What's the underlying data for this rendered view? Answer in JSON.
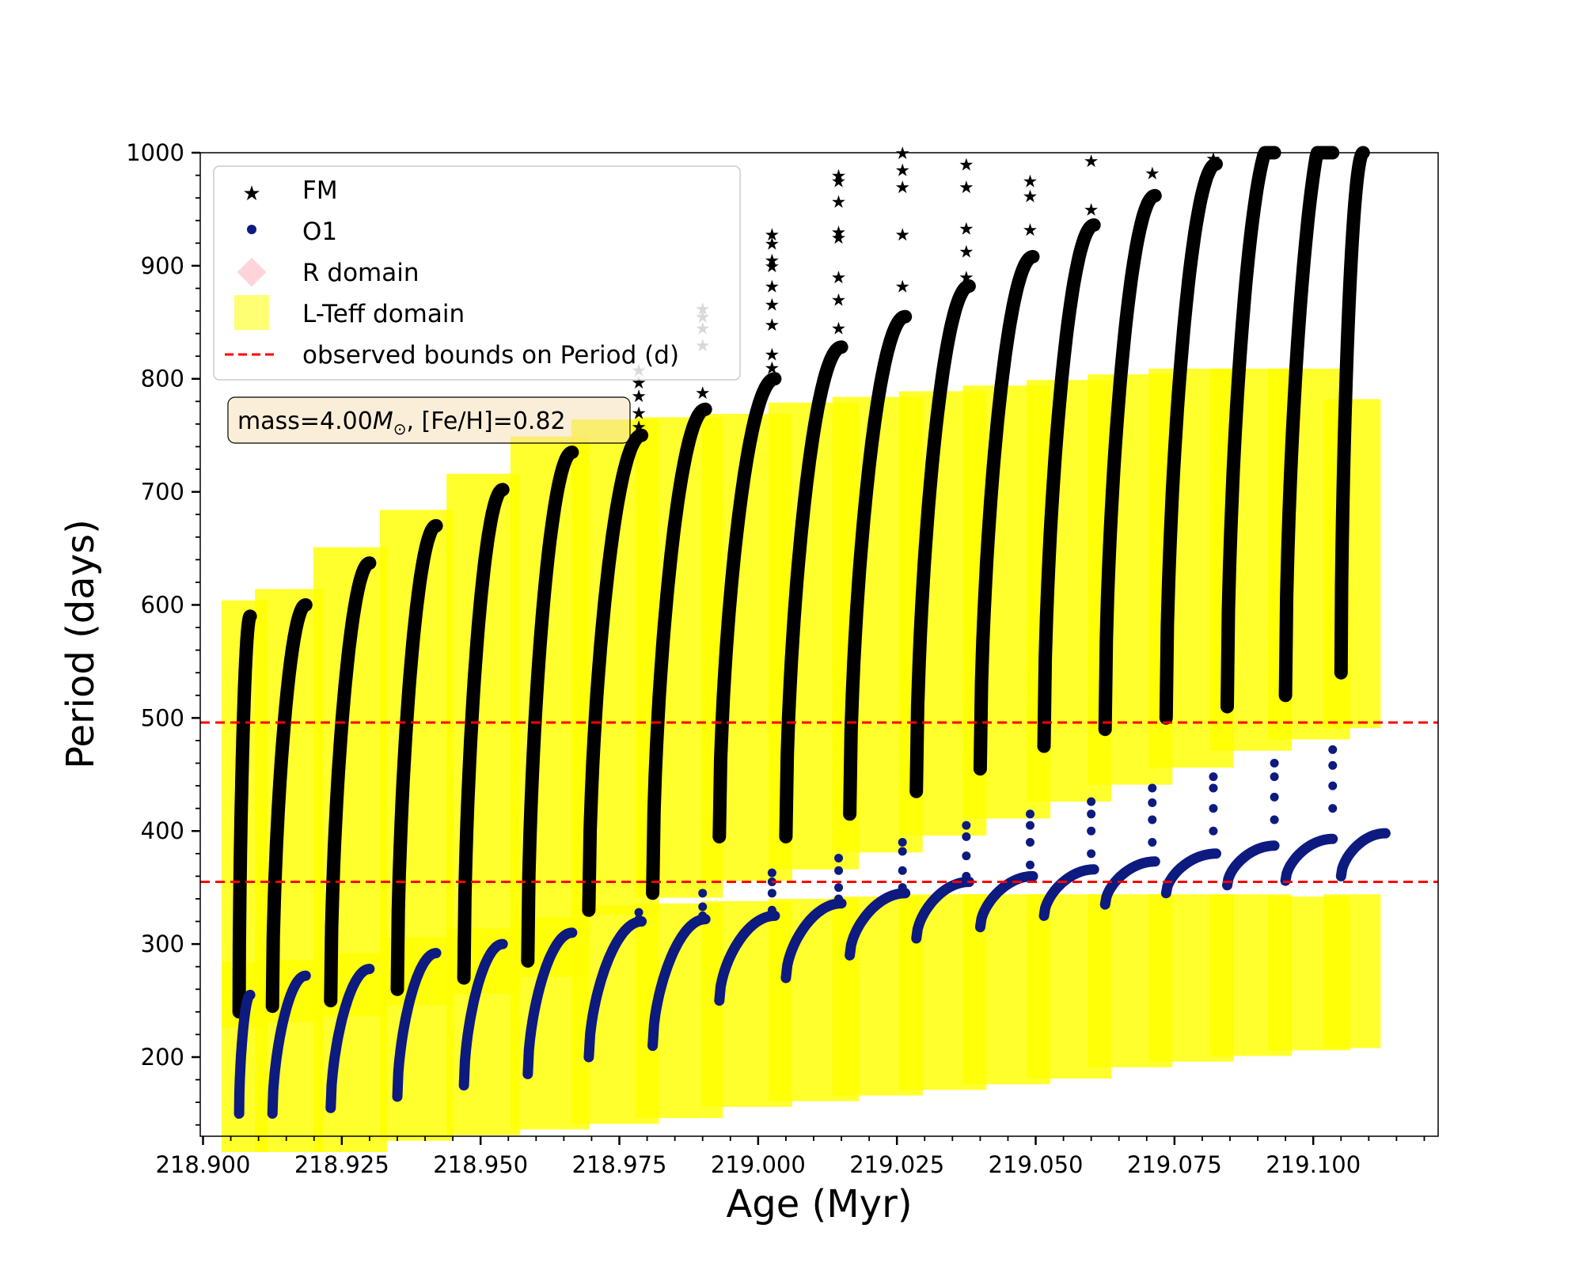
{
  "chart_data": {
    "type": "scatter",
    "xlabel": "Age (Myr)",
    "ylabel": "Period (days)",
    "xlim": [
      218.8995,
      219.1225
    ],
    "ylim": [
      130,
      1000
    ],
    "xticks": [
      218.9,
      218.925,
      218.95,
      218.975,
      219.0,
      219.025,
      219.05,
      219.075,
      219.1
    ],
    "xtick_labels": [
      "218.900",
      "218.925",
      "218.950",
      "218.975",
      "219.000",
      "219.025",
      "219.050",
      "219.075",
      "219.100"
    ],
    "yticks": [
      200,
      300,
      400,
      500,
      600,
      700,
      800,
      900,
      1000
    ],
    "ytick_labels": [
      "200",
      "300",
      "400",
      "500",
      "600",
      "700",
      "800",
      "900",
      "1000"
    ],
    "legend_position": "top-left",
    "annotation": {
      "text_prefix": "mass=4.00",
      "symbol": "M",
      "subscript": "⊙",
      "text_suffix": ", [Fe/H]=0.82"
    },
    "series": [
      {
        "name": "FM",
        "marker": "star",
        "color": "#000000",
        "cycles": [
          {
            "start": 218.9065,
            "end": 218.9085,
            "p0": 240,
            "p1": 590
          },
          {
            "start": 218.9125,
            "end": 218.9185,
            "p0": 245,
            "p1": 600
          },
          {
            "start": 218.923,
            "end": 218.93,
            "p0": 250,
            "p1": 637
          },
          {
            "start": 218.935,
            "end": 218.942,
            "p0": 260,
            "p1": 670
          },
          {
            "start": 218.947,
            "end": 218.954,
            "p0": 270,
            "p1": 702
          },
          {
            "start": 218.9585,
            "end": 218.9665,
            "p0": 285,
            "p1": 735
          },
          {
            "start": 218.9695,
            "end": 218.979,
            "p0": 330,
            "p1": 750
          },
          {
            "start": 218.981,
            "end": 218.9905,
            "p0": 345,
            "p1": 773
          },
          {
            "start": 218.993,
            "end": 219.003,
            "p0": 395,
            "p1": 800
          },
          {
            "start": 219.005,
            "end": 219.015,
            "p0": 395,
            "p1": 828
          },
          {
            "start": 219.0165,
            "end": 219.0265,
            "p0": 415,
            "p1": 855
          },
          {
            "start": 219.0285,
            "end": 219.038,
            "p0": 435,
            "p1": 882
          },
          {
            "start": 219.04,
            "end": 219.0495,
            "p0": 455,
            "p1": 908
          },
          {
            "start": 219.0515,
            "end": 219.0605,
            "p0": 475,
            "p1": 936
          },
          {
            "start": 219.0625,
            "end": 219.0715,
            "p0": 490,
            "p1": 962
          },
          {
            "start": 219.0735,
            "end": 219.0825,
            "p0": 500,
            "p1": 990
          },
          {
            "start": 219.0845,
            "end": 219.093,
            "p0": 510,
            "p1": 1015
          },
          {
            "start": 219.095,
            "end": 219.1035,
            "p0": 520,
            "p1": 1040
          },
          {
            "start": 219.105,
            "end": 219.109,
            "p0": 540,
            "p1": 1000
          }
        ],
        "spikes": [
          {
            "x": 218.9785,
            "p": [
              750,
              758,
              770,
              785,
              797,
              808
            ]
          },
          {
            "x": 218.99,
            "p": [
              788,
              830,
              845,
              855,
              862
            ]
          },
          {
            "x": 219.0025,
            "p": [
              800,
              810,
              822,
              848,
              866,
              882,
              900,
              905,
              920,
              928
            ]
          },
          {
            "x": 219.0145,
            "p": [
              845,
              870,
              890,
              925,
              930,
              957,
              975,
              980
            ]
          },
          {
            "x": 219.026,
            "p": [
              882,
              928,
              970,
              985,
              1000
            ]
          },
          {
            "x": 219.0375,
            "p": [
              890,
              913,
              933,
              970,
              990
            ]
          },
          {
            "x": 219.049,
            "p": [
              932,
              962,
              975
            ]
          },
          {
            "x": 219.06,
            "p": [
              950,
              993
            ]
          },
          {
            "x": 219.071,
            "p": [
              982
            ]
          },
          {
            "x": 219.082,
            "p": [
              995
            ]
          }
        ]
      },
      {
        "name": "O1",
        "marker": "circle",
        "color": "#0d1a80",
        "cycles": [
          {
            "start": 218.9065,
            "end": 218.9085,
            "p0": 150,
            "p1": 255
          },
          {
            "start": 218.9125,
            "end": 218.9185,
            "p0": 150,
            "p1": 272
          },
          {
            "start": 218.923,
            "end": 218.93,
            "p0": 155,
            "p1": 278
          },
          {
            "start": 218.935,
            "end": 218.942,
            "p0": 165,
            "p1": 292
          },
          {
            "start": 218.947,
            "end": 218.954,
            "p0": 175,
            "p1": 300
          },
          {
            "start": 218.9585,
            "end": 218.9665,
            "p0": 185,
            "p1": 310
          },
          {
            "start": 218.9695,
            "end": 218.979,
            "p0": 200,
            "p1": 320
          },
          {
            "start": 218.981,
            "end": 218.9905,
            "p0": 210,
            "p1": 322
          },
          {
            "start": 218.993,
            "end": 219.003,
            "p0": 250,
            "p1": 325
          },
          {
            "start": 219.005,
            "end": 219.015,
            "p0": 270,
            "p1": 336
          },
          {
            "start": 219.0165,
            "end": 219.0265,
            "p0": 290,
            "p1": 345
          },
          {
            "start": 219.0285,
            "end": 219.038,
            "p0": 305,
            "p1": 355
          },
          {
            "start": 219.04,
            "end": 219.0495,
            "p0": 315,
            "p1": 360
          },
          {
            "start": 219.0515,
            "end": 219.0605,
            "p0": 325,
            "p1": 366
          },
          {
            "start": 219.0625,
            "end": 219.0715,
            "p0": 335,
            "p1": 373
          },
          {
            "start": 219.0735,
            "end": 219.0825,
            "p0": 345,
            "p1": 380
          },
          {
            "start": 219.0845,
            "end": 219.093,
            "p0": 352,
            "p1": 387
          },
          {
            "start": 219.095,
            "end": 219.1035,
            "p0": 356,
            "p1": 393
          },
          {
            "start": 219.105,
            "end": 219.113,
            "p0": 360,
            "p1": 398
          }
        ],
        "spikes": [
          {
            "x": 218.9785,
            "p": [
              322,
              328
            ]
          },
          {
            "x": 218.99,
            "p": [
              325,
              333,
              345
            ]
          },
          {
            "x": 219.0025,
            "p": [
              330,
              345,
              355,
              363
            ]
          },
          {
            "x": 219.0145,
            "p": [
              340,
              350,
              365,
              376
            ]
          },
          {
            "x": 219.026,
            "p": [
              350,
              365,
              382,
              390
            ]
          },
          {
            "x": 219.0375,
            "p": [
              360,
              378,
              395,
              405
            ]
          },
          {
            "x": 219.049,
            "p": [
              370,
              390,
              405,
              415
            ]
          },
          {
            "x": 219.06,
            "p": [
              380,
              400,
              415,
              426
            ]
          },
          {
            "x": 219.071,
            "p": [
              390,
              410,
              425,
              438
            ]
          },
          {
            "x": 219.082,
            "p": [
              400,
              420,
              438,
              448
            ]
          },
          {
            "x": 219.093,
            "p": [
              410,
              430,
              448,
              460
            ]
          },
          {
            "x": 219.1035,
            "p": [
              420,
              440,
              458,
              472
            ]
          }
        ]
      },
      {
        "name": "R domain",
        "marker": "diamond",
        "color": "#ffc0cb",
        "cycles": [],
        "spikes": []
      },
      {
        "name": "L-Teff domain",
        "marker": "square",
        "color": "#ffff00",
        "bands": [
          {
            "x0": 218.9065,
            "x1": 218.9085,
            "upper": [
              240,
              590
            ],
            "lower": [
              130,
              270
            ]
          },
          {
            "x0": 218.9125,
            "x1": 218.9185,
            "upper": [
              245,
              600
            ],
            "lower": [
              130,
              272
            ]
          },
          {
            "x0": 218.923,
            "x1": 218.93,
            "upper": [
              250,
              637
            ],
            "lower": [
              130,
              278
            ]
          },
          {
            "x0": 218.935,
            "x1": 218.942,
            "upper": [
              260,
              670
            ],
            "lower": [
              140,
              292
            ]
          },
          {
            "x0": 218.947,
            "x1": 218.954,
            "upper": [
              270,
              702
            ],
            "lower": [
              145,
              300
            ]
          },
          {
            "x0": 218.9585,
            "x1": 218.9665,
            "upper": [
              285,
              735
            ],
            "lower": [
              150,
              310
            ]
          },
          {
            "x0": 218.9695,
            "x1": 218.979,
            "upper": [
              340,
              750
            ],
            "lower": [
              155,
              320
            ]
          },
          {
            "x0": 218.981,
            "x1": 218.9905,
            "upper": [
              355,
              752
            ],
            "lower": [
              160,
              322
            ]
          },
          {
            "x0": 218.993,
            "x1": 219.003,
            "upper": [
              370,
              755
            ],
            "lower": [
              170,
              324
            ]
          },
          {
            "x0": 219.005,
            "x1": 219.015,
            "upper": [
              380,
              765
            ],
            "lower": [
              175,
              326
            ]
          },
          {
            "x0": 219.0165,
            "x1": 219.0265,
            "upper": [
              395,
              770
            ],
            "lower": [
              180,
              328
            ]
          },
          {
            "x0": 219.0285,
            "x1": 219.038,
            "upper": [
              410,
              775
            ],
            "lower": [
              185,
              330
            ]
          },
          {
            "x0": 219.04,
            "x1": 219.0495,
            "upper": [
              425,
              780
            ],
            "lower": [
              190,
              330
            ]
          },
          {
            "x0": 219.0515,
            "x1": 219.0605,
            "upper": [
              440,
              785
            ],
            "lower": [
              195,
              330
            ]
          },
          {
            "x0": 219.0625,
            "x1": 219.0715,
            "upper": [
              455,
              790
            ],
            "lower": [
              205,
              330
            ]
          },
          {
            "x0": 219.0735,
            "x1": 219.0825,
            "upper": [
              470,
              795
            ],
            "lower": [
              210,
              330
            ]
          },
          {
            "x0": 219.0845,
            "x1": 219.093,
            "upper": [
              485,
              795
            ],
            "lower": [
              215,
              330
            ]
          },
          {
            "x0": 219.095,
            "x1": 219.1035,
            "upper": [
              495,
              795
            ],
            "lower": [
              220,
              328
            ]
          },
          {
            "x0": 219.105,
            "x1": 219.109,
            "upper": [
              505,
              768
            ],
            "lower": [
              222,
              330
            ]
          }
        ]
      },
      {
        "name": "observed bounds on Period (d)",
        "marker": "dashed-line",
        "color": "#ff0000",
        "values": [
          355,
          496
        ]
      }
    ]
  }
}
